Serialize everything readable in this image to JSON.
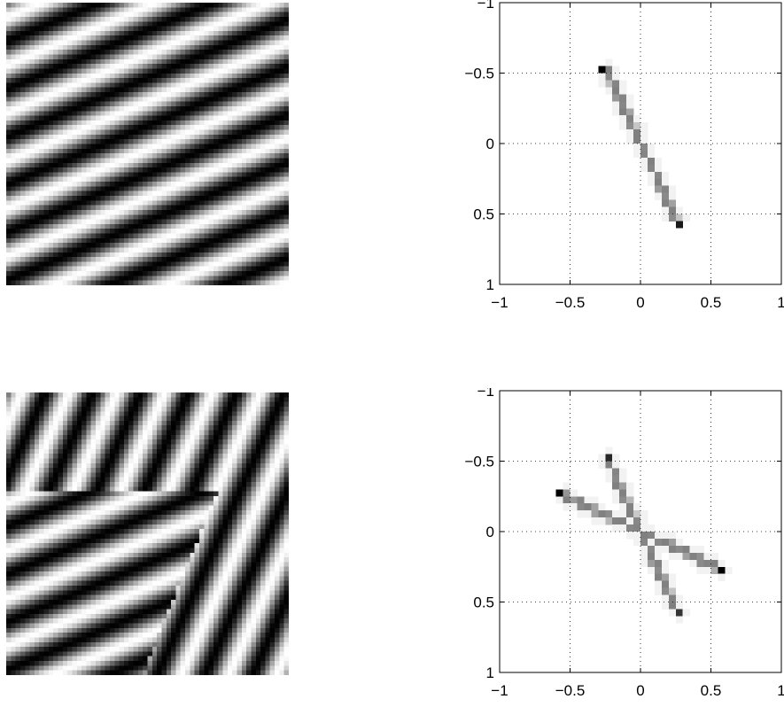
{
  "panels": [
    {
      "image": {
        "description_id": "single-grating",
        "gratings": [
          {
            "orientation_deg": 22.9,
            "frequency": 0.068
          }
        ]
      },
      "chart_data": {
        "type": "heatmap",
        "title": "",
        "xlabel": "",
        "ylabel": "",
        "xlim": [
          -1,
          1
        ],
        "ylim": [
          -1,
          1
        ],
        "y_inverted": true,
        "xticks": [
          -1,
          -0.5,
          0,
          0.5,
          1
        ],
        "yticks": [
          -1,
          -0.5,
          0,
          0.5,
          1
        ],
        "xtick_labels": [
          "−1",
          "−0.5",
          "0",
          "0.5",
          "1"
        ],
        "ytick_labels": [
          "−1",
          "−0.5",
          "0",
          "0.5",
          "1"
        ],
        "grid": true,
        "lines": [
          {
            "x0": -0.25,
            "y0": -0.53,
            "x1": 0.25,
            "y1": 0.53,
            "peaks": [
              {
                "x": -0.26,
                "y": -0.54,
                "v": 1.0
              },
              {
                "x": 0.25,
                "y": 0.55,
                "v": 0.9
              }
            ]
          }
        ]
      }
    },
    {
      "image": {
        "description_id": "two-gratings",
        "gratings": [
          {
            "orientation_deg": 22.9,
            "frequency": 0.068
          },
          {
            "orientation_deg": 65.5,
            "frequency": 0.068
          }
        ]
      },
      "chart_data": {
        "type": "heatmap",
        "title": "",
        "xlabel": "",
        "ylabel": "",
        "xlim": [
          -1,
          1
        ],
        "ylim": [
          -1,
          1
        ],
        "y_inverted": true,
        "xticks": [
          -1,
          -0.5,
          0,
          0.5,
          1
        ],
        "yticks": [
          -1,
          -0.5,
          0,
          0.5,
          1
        ],
        "xtick_labels": [
          "−1",
          "−0.5",
          "0",
          "0.5",
          "1"
        ],
        "ytick_labels": [
          "−1",
          "−0.5",
          "0",
          "0.5",
          "1"
        ],
        "grid": true,
        "lines": [
          {
            "x0": -0.25,
            "y0": -0.55,
            "x1": 0.25,
            "y1": 0.55,
            "peaks": [
              {
                "x": -0.25,
                "y": -0.55,
                "v": 0.85
              },
              {
                "x": 0.25,
                "y": 0.55,
                "v": 0.8
              }
            ]
          },
          {
            "x0": -0.56,
            "y0": -0.26,
            "x1": 0.56,
            "y1": 0.26,
            "peaks": [
              {
                "x": -0.56,
                "y": -0.26,
                "v": 1.0
              },
              {
                "x": 0.56,
                "y": 0.26,
                "v": 1.0
              }
            ]
          }
        ]
      }
    }
  ]
}
